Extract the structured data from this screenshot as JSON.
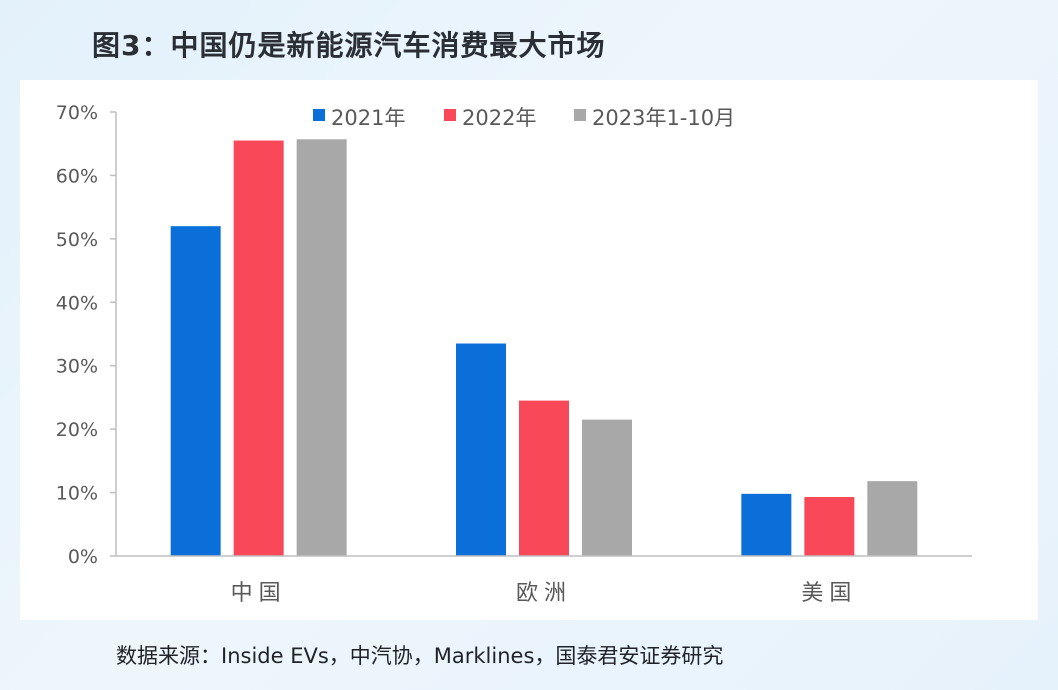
{
  "header": {
    "title": "图3：中国仍是新能源汽车消费最大市场"
  },
  "footer": {
    "source": "数据来源：Inside EVs，中汽协，Marklines，国泰君安证券研究"
  },
  "colors": {
    "c2021": "#0b6fd9",
    "c2022": "#f94958",
    "c2023": "#a8a8a8"
  },
  "chart_data": {
    "type": "bar",
    "categories": [
      "中国",
      "欧洲",
      "美国"
    ],
    "series": [
      {
        "name": "2021年",
        "color": "#0b6fd9",
        "values": [
          52,
          33.5,
          9.8
        ]
      },
      {
        "name": "2022年",
        "color": "#f94958",
        "values": [
          65.5,
          24.5,
          9.3
        ]
      },
      {
        "name": "2023年1-10月",
        "color": "#a8a8a8",
        "values": [
          65.7,
          21.5,
          11.8
        ]
      }
    ],
    "y_ticks": [
      "0%",
      "10%",
      "20%",
      "30%",
      "40%",
      "50%",
      "60%",
      "70%"
    ],
    "ylim": [
      0,
      70
    ],
    "title": "",
    "xlabel": "",
    "ylabel": "",
    "legend": "top",
    "grid": false
  }
}
